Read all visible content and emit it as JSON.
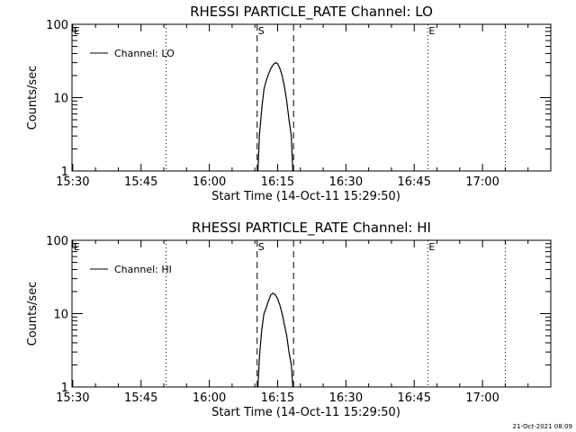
{
  "footer_timestamp": "21-Oct-2021 08:09",
  "chart_data": [
    {
      "type": "line",
      "title": "RHESSI  PARTICLE_RATE  Channel: LO",
      "xlabel": "Start Time (14-Oct-11 15:29:50)",
      "ylabel": "Counts/sec",
      "yscale": "log",
      "ylim": [
        1,
        100
      ],
      "ytick_labels": [
        "1",
        "10",
        "100"
      ],
      "xlim": [
        "15:29:50",
        "17:15:00"
      ],
      "xtick_labels": [
        "15:30",
        "15:45",
        "16:00",
        "16:15",
        "16:30",
        "16:45",
        "17:00"
      ],
      "grid": false,
      "legend": {
        "entries": [
          "Channel: LO"
        ],
        "position": "top-left"
      },
      "annotations": [
        {
          "text": "E",
          "time": "15:30:00",
          "style": "dotted"
        },
        {
          "text": "",
          "time": "15:50:30",
          "style": "dotted"
        },
        {
          "text": "S",
          "time": "16:10:30",
          "style": "dashed"
        },
        {
          "text": "",
          "time": "16:18:30",
          "style": "dashed"
        },
        {
          "text": "E",
          "time": "16:48:00",
          "style": "dotted"
        },
        {
          "text": "",
          "time": "17:05:00",
          "style": "dotted"
        }
      ],
      "series": [
        {
          "name": "Channel: LO",
          "x": [
            "16:10:40",
            "16:11:00",
            "16:11:30",
            "16:12:00",
            "16:12:30",
            "16:13:00",
            "16:13:30",
            "16:14:00",
            "16:14:30",
            "16:15:00",
            "16:15:30",
            "16:16:00",
            "16:16:30",
            "16:17:00",
            "16:17:30",
            "16:18:00",
            "16:18:20"
          ],
          "values": [
            1,
            3,
            7,
            13,
            17,
            21,
            25,
            28,
            30,
            29,
            25,
            20,
            14,
            9,
            5,
            3,
            1
          ]
        }
      ]
    },
    {
      "type": "line",
      "title": "RHESSI  PARTICLE_RATE  Channel: HI",
      "xlabel": "Start Time (14-Oct-11 15:29:50)",
      "ylabel": "Counts/sec",
      "yscale": "log",
      "ylim": [
        1,
        100
      ],
      "ytick_labels": [
        "1",
        "10",
        "100"
      ],
      "xlim": [
        "15:29:50",
        "17:15:00"
      ],
      "xtick_labels": [
        "15:30",
        "15:45",
        "16:00",
        "16:15",
        "16:30",
        "16:45",
        "17:00"
      ],
      "grid": false,
      "legend": {
        "entries": [
          "Channel: HI"
        ],
        "position": "top-left"
      },
      "annotations": [
        {
          "text": "E",
          "time": "15:30:00",
          "style": "dotted"
        },
        {
          "text": "",
          "time": "15:50:30",
          "style": "dotted"
        },
        {
          "text": "S",
          "time": "16:10:30",
          "style": "dashed"
        },
        {
          "text": "",
          "time": "16:18:30",
          "style": "dashed"
        },
        {
          "text": "E",
          "time": "16:48:00",
          "style": "dotted"
        },
        {
          "text": "",
          "time": "17:05:00",
          "style": "dotted"
        }
      ],
      "series": [
        {
          "name": "Channel: HI",
          "x": [
            "16:10:40",
            "16:11:00",
            "16:11:30",
            "16:12:00",
            "16:12:30",
            "16:13:00",
            "16:13:30",
            "16:14:00",
            "16:14:30",
            "16:15:00",
            "16:15:30",
            "16:16:00",
            "16:16:30",
            "16:17:00",
            "16:17:30",
            "16:18:00",
            "16:18:20"
          ],
          "values": [
            1,
            2.5,
            6,
            10,
            12,
            15,
            18,
            19,
            18,
            16,
            13,
            10,
            7,
            5,
            3,
            2,
            1
          ]
        }
      ]
    }
  ]
}
